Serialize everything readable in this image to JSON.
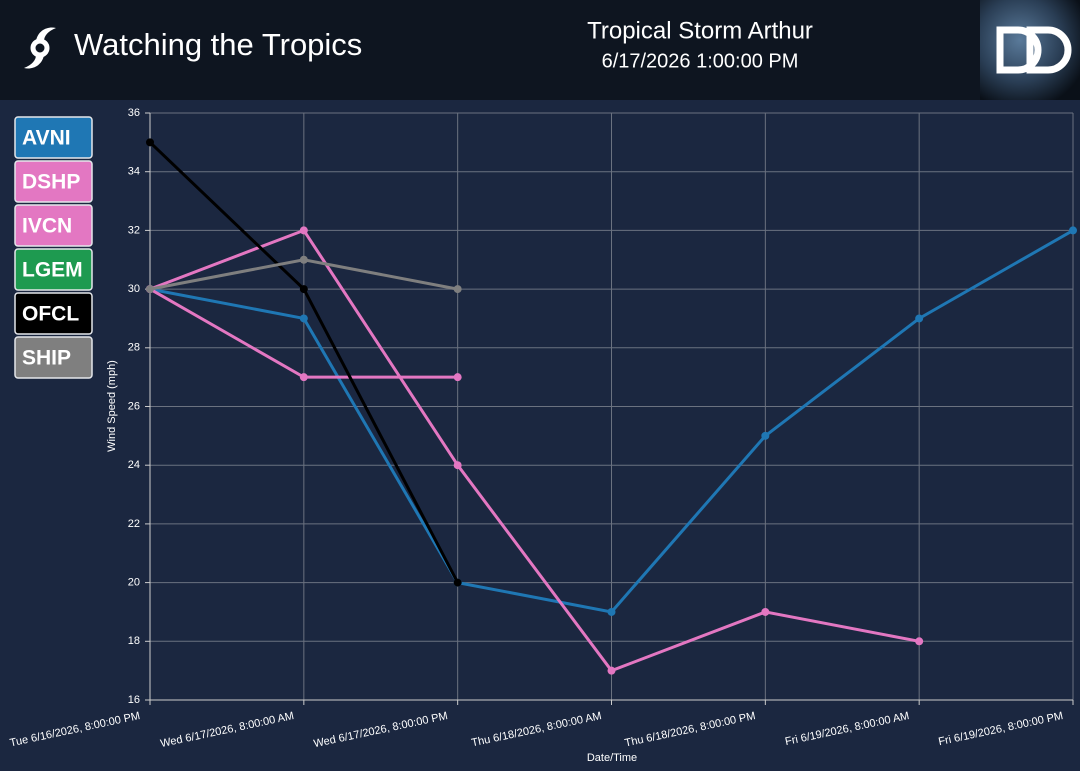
{
  "header": {
    "app_title": "Watching the Tropics"
  },
  "chart_data": {
    "type": "line",
    "title": "Tropical Storm Arthur",
    "subtitle": "6/17/2026 1:00:00 PM",
    "x_label": "Date/Time",
    "y_label": "Wind Speed (mph)",
    "categories": [
      "Tue 6/16/2026, 8:00:00 PM",
      "Wed 6/17/2026, 8:00:00 AM",
      "Wed 6/17/2026, 8:00:00 PM",
      "Thu 6/18/2026, 8:00:00 AM",
      "Thu 6/18/2026, 8:00:00 PM",
      "Fri 6/19/2026, 8:00:00 AM",
      "Fri 6/19/2026, 8:00:00 PM"
    ],
    "series": [
      {
        "name": "AVNI",
        "color": "#1f77b4",
        "values": [
          30,
          29,
          20,
          19,
          25,
          29,
          32
        ]
      },
      {
        "name": "DSHP",
        "color": "#e377c2",
        "values": [
          30,
          32,
          24,
          17,
          19,
          18,
          null
        ]
      },
      {
        "name": "IVCN",
        "color": "#e377c2",
        "values": [
          30,
          27,
          27,
          null,
          null,
          null,
          null
        ]
      },
      {
        "name": "LGEM",
        "color": "#1e9a50",
        "values": [
          null,
          null,
          null,
          null,
          null,
          null,
          null
        ]
      },
      {
        "name": "OFCL",
        "color": "#000000",
        "values": [
          35,
          30,
          20,
          null,
          null,
          null,
          null
        ]
      },
      {
        "name": "SHIP",
        "color": "#7f7f7f",
        "values": [
          30,
          31,
          30,
          null,
          null,
          null,
          null
        ]
      }
    ],
    "ylim": [
      16,
      36
    ],
    "yticks": [
      16,
      18,
      20,
      22,
      24,
      26,
      28,
      30,
      32,
      34,
      36
    ],
    "grid": true
  }
}
